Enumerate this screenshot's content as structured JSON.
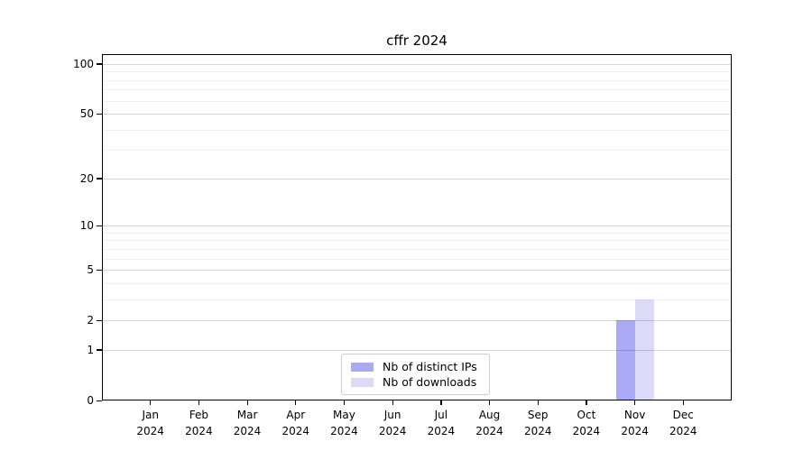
{
  "title": "cffr 2024",
  "chart_data": {
    "type": "bar",
    "title": "cffr 2024",
    "categories": [
      "Jan 2024",
      "Feb 2024",
      "Mar 2024",
      "Apr 2024",
      "May 2024",
      "Jun 2024",
      "Jul 2024",
      "Aug 2024",
      "Sep 2024",
      "Oct 2024",
      "Nov 2024",
      "Dec 2024"
    ],
    "series": [
      {
        "name": "Nb of distinct IPs",
        "color": "#a9a9f6",
        "values": [
          0,
          0,
          0,
          0,
          0,
          0,
          0,
          0,
          0,
          0,
          2,
          0
        ]
      },
      {
        "name": "Nb of downloads",
        "color": "#dbdbf8",
        "values": [
          0,
          0,
          0,
          0,
          0,
          0,
          0,
          0,
          0,
          0,
          3,
          0
        ]
      }
    ],
    "xlabel": "",
    "ylabel": "",
    "yscale": "log1p",
    "ylim": [
      0,
      115
    ],
    "y_major_ticks": [
      0,
      1,
      2,
      5,
      10,
      20,
      50,
      100
    ],
    "y_minor_ticks": [
      3,
      4,
      6,
      7,
      8,
      9,
      30,
      40,
      60,
      70,
      80,
      90
    ],
    "grid": true,
    "legend_position": "lower center"
  },
  "legend": {
    "items": [
      {
        "label": "Nb of distinct IPs",
        "color": "#a9a9f6"
      },
      {
        "label": "Nb of downloads",
        "color": "#dbdbf8"
      }
    ]
  }
}
